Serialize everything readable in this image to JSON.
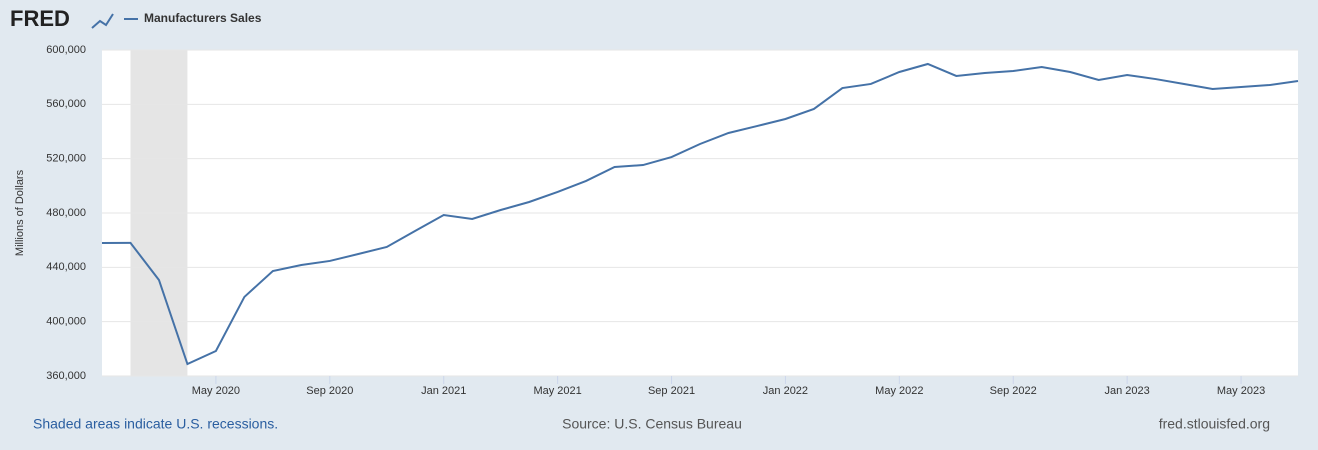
{
  "chart_data": {
    "type": "line",
    "logo": "FRED",
    "y_axis_label": "Millions of Dollars",
    "note": "Shaded areas indicate U.S. recessions.",
    "source": "Source: U.S. Census Bureau",
    "site": "fred.stlouisfed.org",
    "x": [
      "2020-01",
      "2020-02",
      "2020-03",
      "2020-04",
      "2020-05",
      "2020-06",
      "2020-07",
      "2020-08",
      "2020-09",
      "2020-10",
      "2020-11",
      "2020-12",
      "2021-01",
      "2021-02",
      "2021-03",
      "2021-04",
      "2021-05",
      "2021-06",
      "2021-07",
      "2021-08",
      "2021-09",
      "2021-10",
      "2021-11",
      "2021-12",
      "2022-01",
      "2022-02",
      "2022-03",
      "2022-04",
      "2022-05",
      "2022-06",
      "2022-07",
      "2022-08",
      "2022-09",
      "2022-10",
      "2022-11",
      "2022-12",
      "2023-01",
      "2023-02",
      "2023-03",
      "2023-04",
      "2023-05",
      "2023-06",
      "2023-07"
    ],
    "series": [
      {
        "name": "Manufacturers Sales",
        "color": "#4572a7",
        "values": [
          457900,
          458000,
          430700,
          368800,
          378400,
          418200,
          437300,
          441700,
          444700,
          449800,
          455000,
          466800,
          478500,
          475600,
          482200,
          488100,
          495500,
          503600,
          513900,
          515300,
          521200,
          530800,
          538900,
          544000,
          549200,
          556600,
          572000,
          575000,
          583800,
          589700,
          580900,
          583100,
          584500,
          587500,
          583800,
          577900,
          581600,
          578600,
          575000,
          571300,
          572800,
          574200,
          577200
        ]
      }
    ],
    "recessions": [
      {
        "start": "2020-02",
        "end": "2020-04"
      }
    ],
    "xlim": [
      "2020-01",
      "2023-07"
    ],
    "xticks": [
      {
        "value": "2020-05",
        "label": "May 2020"
      },
      {
        "value": "2020-09",
        "label": "Sep 2020"
      },
      {
        "value": "2021-01",
        "label": "Jan 2021"
      },
      {
        "value": "2021-05",
        "label": "May 2021"
      },
      {
        "value": "2021-09",
        "label": "Sep 2021"
      },
      {
        "value": "2022-01",
        "label": "Jan 2022"
      },
      {
        "value": "2022-05",
        "label": "May 2022"
      },
      {
        "value": "2022-09",
        "label": "Sep 2022"
      },
      {
        "value": "2023-01",
        "label": "Jan 2023"
      },
      {
        "value": "2023-05",
        "label": "May 2023"
      }
    ],
    "ylim": [
      360000,
      600000
    ],
    "yticks": [
      {
        "value": 360000,
        "label": "360,000"
      },
      {
        "value": 400000,
        "label": "400,000"
      },
      {
        "value": 440000,
        "label": "440,000"
      },
      {
        "value": 480000,
        "label": "480,000"
      },
      {
        "value": 520000,
        "label": "520,000"
      },
      {
        "value": 560000,
        "label": "560,000"
      },
      {
        "value": 600000,
        "label": "600,000"
      }
    ],
    "grid": true
  }
}
